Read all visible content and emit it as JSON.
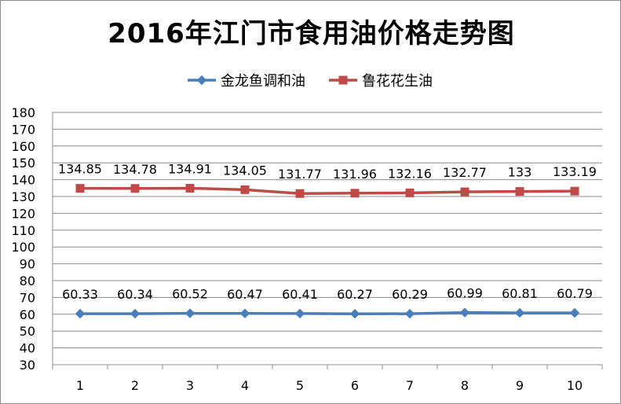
{
  "chart_data": {
    "type": "line",
    "title": "2016年江门市食用油价格走势图",
    "categories": [
      "1",
      "2",
      "3",
      "4",
      "5",
      "6",
      "7",
      "8",
      "9",
      "10"
    ],
    "series": [
      {
        "name": "金龙鱼调和油",
        "color": "#4a7ebb",
        "marker": "diamond",
        "values": [
          60.33,
          60.34,
          60.52,
          60.47,
          60.41,
          60.27,
          60.29,
          60.99,
          60.81,
          60.79
        ],
        "labels": [
          "60.33",
          "60.34",
          "60.52",
          "60.47",
          "60.41",
          "60.27",
          "60.29",
          "60.99",
          "60.81",
          "60.79"
        ]
      },
      {
        "name": "鲁花花生油",
        "color": "#be4b48",
        "marker": "square",
        "values": [
          134.85,
          134.78,
          134.91,
          134.05,
          131.77,
          131.96,
          132.16,
          132.77,
          133,
          133.19
        ],
        "labels": [
          "134.85",
          "134.78",
          "134.91",
          "134.05",
          "131.77",
          "131.96",
          "132.16",
          "132.77",
          "133",
          "133.19"
        ]
      }
    ],
    "ylim": [
      30,
      180
    ],
    "yticks": [
      "30",
      "40",
      "50",
      "60",
      "70",
      "80",
      "90",
      "100",
      "110",
      "120",
      "130",
      "140",
      "150",
      "160",
      "170",
      "180"
    ],
    "grid": true,
    "legend": "top"
  }
}
